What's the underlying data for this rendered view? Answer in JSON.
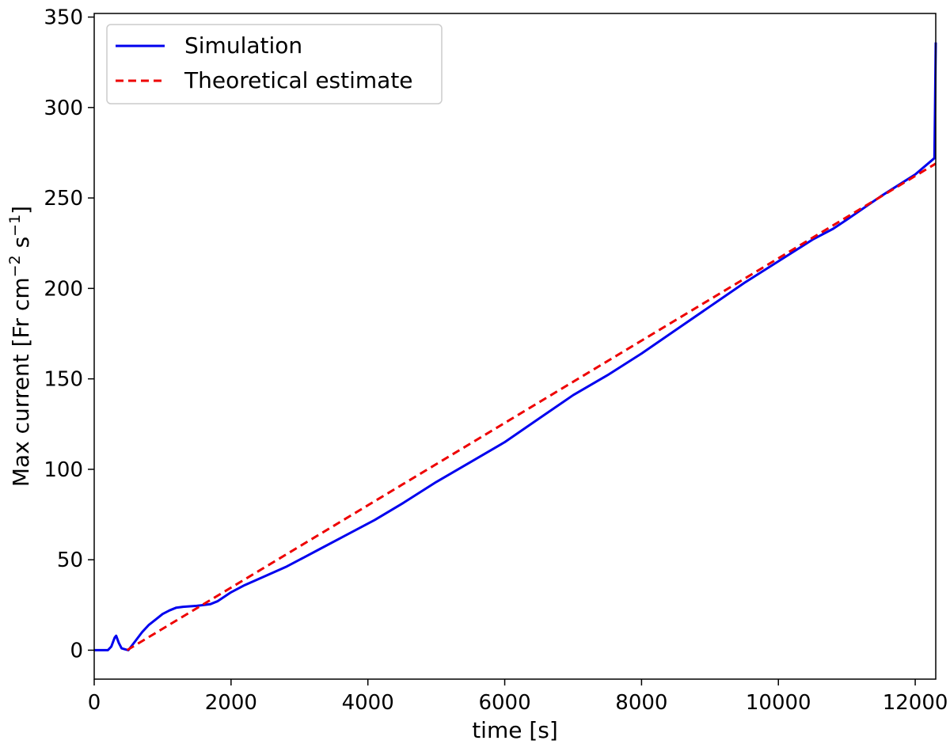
{
  "chart_data": {
    "type": "line",
    "title": "",
    "xlabel": "time [s]",
    "ylabel_main": "Max current [Fr cm",
    "ylabel_sup1": "−2",
    "ylabel_mid": " s",
    "ylabel_sup2": "−1",
    "ylabel_end": "]",
    "xlim": [
      0,
      12300
    ],
    "ylim": [
      -16,
      352
    ],
    "xticks": [
      0,
      2000,
      4000,
      6000,
      8000,
      10000,
      12000
    ],
    "xtick_labels": [
      "0",
      "2000",
      "4000",
      "6000",
      "8000",
      "10000",
      "12000"
    ],
    "yticks": [
      0,
      50,
      100,
      150,
      200,
      250,
      300,
      350
    ],
    "ytick_labels": [
      "0",
      "50",
      "100",
      "150",
      "200",
      "250",
      "300",
      "350"
    ],
    "grid": false,
    "legend_position": "top-left",
    "series": [
      {
        "name": "Simulation",
        "color": "#0000ee",
        "style": "solid",
        "x": [
          0,
          200,
          250,
          300,
          320,
          360,
          400,
          450,
          500,
          600,
          700,
          800,
          900,
          1000,
          1100,
          1200,
          1300,
          1500,
          1700,
          1800,
          2000,
          2200,
          2500,
          2800,
          3000,
          3300,
          3700,
          4100,
          4500,
          5000,
          5500,
          6000,
          6500,
          7000,
          7500,
          8000,
          8500,
          9000,
          9500,
          10000,
          10500,
          10800,
          11000,
          11500,
          12000,
          12280,
          12290,
          12300
        ],
        "y": [
          0,
          0,
          2,
          7,
          8,
          4,
          1,
          0.5,
          0,
          5,
          10,
          14,
          17,
          20,
          22,
          23.5,
          24,
          24.5,
          25.5,
          27,
          32,
          36,
          41,
          46,
          50,
          56,
          64,
          72,
          81,
          93,
          104,
          115,
          128,
          141,
          152,
          164,
          177,
          190,
          203,
          215,
          227,
          233,
          238,
          251,
          263,
          272,
          300,
          336
        ]
      },
      {
        "name": "Theoretical estimate",
        "color": "#ee0000",
        "style": "dashed",
        "x": [
          480,
          12300
        ],
        "y": [
          0,
          269
        ]
      }
    ]
  }
}
